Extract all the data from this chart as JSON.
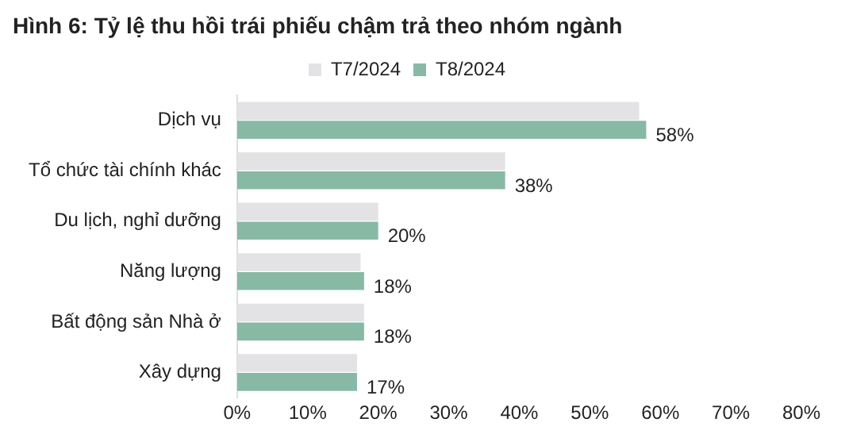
{
  "chart_data": {
    "type": "bar",
    "orientation": "horizontal",
    "title": "Hình 6: Tỷ lệ thu hồi trái phiếu chậm trả theo nhóm ngành",
    "categories": [
      "Dịch vụ",
      "Tổ chức tài chính khác",
      "Du lịch, nghỉ dưỡng",
      "Năng lượng",
      "Bất động sản Nhà ở",
      "Xây dựng"
    ],
    "series": [
      {
        "name": "T7/2024",
        "color": "#e3e3e5",
        "values": [
          57,
          38,
          20,
          17.5,
          18,
          17
        ]
      },
      {
        "name": "T8/2024",
        "color": "#88b9a5",
        "values": [
          58,
          38,
          20,
          18,
          18,
          17
        ],
        "value_labels": [
          "58%",
          "38%",
          "20%",
          "18%",
          "18%",
          "17%"
        ]
      }
    ],
    "xlim": [
      0,
      80
    ],
    "xticks": [
      {
        "value": 0,
        "label": "0%"
      },
      {
        "value": 10,
        "label": "10%"
      },
      {
        "value": 20,
        "label": "20%"
      },
      {
        "value": 30,
        "label": "30%"
      },
      {
        "value": 40,
        "label": "40%"
      },
      {
        "value": 50,
        "label": "50%"
      },
      {
        "value": 60,
        "label": "60%"
      },
      {
        "value": 70,
        "label": "70%"
      },
      {
        "value": 80,
        "label": "80%"
      }
    ],
    "grid": false,
    "legend": "top"
  }
}
